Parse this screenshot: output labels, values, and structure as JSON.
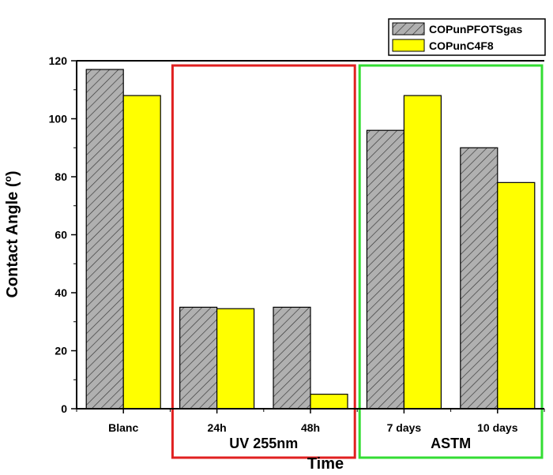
{
  "chart_data": {
    "type": "bar",
    "categories": [
      "Blanc",
      "24h",
      "48h",
      "7 days",
      "10 days"
    ],
    "series": [
      {
        "name": "COPunPFOTSgas",
        "values": [
          117,
          35,
          35,
          96,
          90
        ],
        "color": "#b0b0b0",
        "pattern": "diagonal-hatch"
      },
      {
        "name": "COPunC4F8",
        "values": [
          108,
          34.5,
          5,
          108,
          78
        ],
        "color": "#ffff00",
        "pattern": "solid"
      }
    ],
    "xlabel": "Time",
    "ylabel": "Contact Angle (°)",
    "ylabel_main": "Contact Angle (",
    "ylabel_sup": "o",
    "ylabel_end": ")",
    "ylim": [
      0,
      120
    ],
    "yticks": [
      "0",
      "20",
      "40",
      "60",
      "80",
      "100",
      "120"
    ],
    "grid": false,
    "legend_position": "top-right",
    "groups": [
      {
        "label": "UV 255nm",
        "categories": [
          "24h",
          "48h"
        ],
        "color": "#e02020"
      },
      {
        "label": "ASTM",
        "categories": [
          "7 days",
          "10 days"
        ],
        "color": "#33dd33"
      }
    ]
  }
}
